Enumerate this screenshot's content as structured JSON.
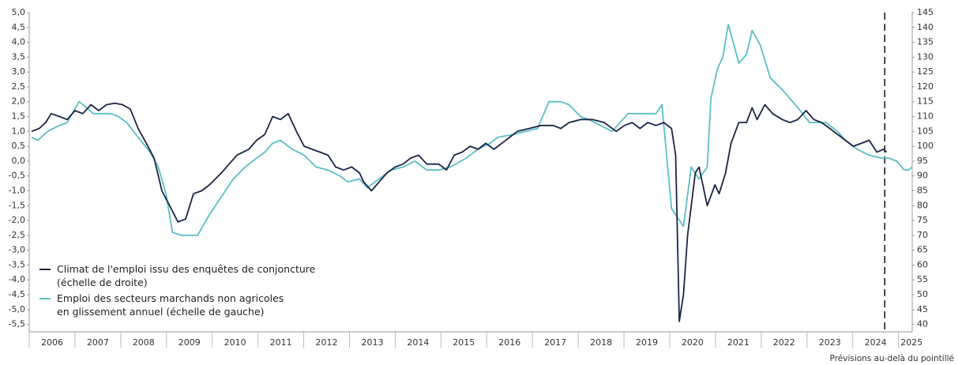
{
  "chart_data": {
    "type": "line",
    "annotation": "Prévisions au-delà du pointillé",
    "forecast_x": 2024.7,
    "xlim": [
      2006,
      2025.3
    ],
    "xticks": [
      2006,
      2007,
      2008,
      2009,
      2010,
      2011,
      2012,
      2013,
      2014,
      2015,
      2016,
      2017,
      2018,
      2019,
      2020,
      2021,
      2022,
      2023,
      2024,
      2025
    ],
    "ylim": [
      -5.75,
      5.0
    ],
    "yticks": [
      {
        "value": 5.0,
        "label": "5,0"
      },
      {
        "value": 4.5,
        "label": "4,5"
      },
      {
        "value": 4.0,
        "label": "4,0"
      },
      {
        "value": 3.5,
        "label": "3,5"
      },
      {
        "value": 3.0,
        "label": "3,0"
      },
      {
        "value": 2.5,
        "label": "2,5"
      },
      {
        "value": 2.0,
        "label": "2,0"
      },
      {
        "value": 1.5,
        "label": "1,5"
      },
      {
        "value": 1.0,
        "label": "1,0"
      },
      {
        "value": 0.5,
        "label": "0,5"
      },
      {
        "value": 0.0,
        "label": "0,0"
      },
      {
        "value": -0.5,
        "label": "-0,5"
      },
      {
        "value": -1.0,
        "label": "-1,0"
      },
      {
        "value": -1.5,
        "label": "-1,5"
      },
      {
        "value": -2.0,
        "label": "-2,0"
      },
      {
        "value": -2.5,
        "label": "-2,5"
      },
      {
        "value": -3.0,
        "label": "-3,0"
      },
      {
        "value": -3.5,
        "label": "-3,5"
      },
      {
        "value": -4.0,
        "label": "-4,0"
      },
      {
        "value": -4.5,
        "label": "-4,5"
      },
      {
        "value": -5.0,
        "label": "-5,0"
      },
      {
        "value": -5.5,
        "label": "-5,5"
      }
    ],
    "y2lim": [
      37.5,
      145
    ],
    "y2ticks": [
      145,
      140,
      135,
      130,
      125,
      120,
      115,
      110,
      105,
      100,
      95,
      90,
      85,
      80,
      75,
      70,
      65,
      60,
      55,
      50,
      45,
      40
    ],
    "grid": false,
    "legend": "lower left",
    "series": [
      {
        "name": "Climat de l'emploi issu des enquêtes de conjoncture\n(échelle de droite)",
        "color": "#1c2547",
        "axis": "y2",
        "x": [
          2006.05,
          2006.22,
          2006.36,
          2006.48,
          2006.66,
          2006.83,
          2007.0,
          2007.17,
          2007.35,
          2007.52,
          2007.69,
          2007.87,
          2008.04,
          2008.21,
          2008.38,
          2008.56,
          2008.73,
          2008.9,
          2009.07,
          2009.25,
          2009.42,
          2009.59,
          2009.77,
          2009.94,
          2010.2,
          2010.37,
          2010.54,
          2010.8,
          2010.97,
          2011.15,
          2011.32,
          2011.49,
          2011.66,
          2011.84,
          2012.01,
          2012.18,
          2012.36,
          2012.53,
          2012.7,
          2012.87,
          2013.05,
          2013.22,
          2013.31,
          2013.48,
          2013.65,
          2013.82,
          2014.0,
          2014.17,
          2014.34,
          2014.51,
          2014.69,
          2014.95,
          2015.12,
          2015.29,
          2015.46,
          2015.64,
          2015.81,
          2015.98,
          2016.16,
          2016.33,
          2016.5,
          2016.67,
          2016.93,
          2017.19,
          2017.45,
          2017.62,
          2017.8,
          2018.06,
          2018.31,
          2018.57,
          2018.83,
          2019.01,
          2019.18,
          2019.35,
          2019.52,
          2019.7,
          2019.87,
          2020.04,
          2020.13,
          2020.21,
          2020.3,
          2020.39,
          2020.56,
          2020.64,
          2020.82,
          2020.99,
          2021.08,
          2021.22,
          2021.34,
          2021.51,
          2021.68,
          2021.8,
          2021.91,
          2022.08,
          2022.25,
          2022.46,
          2022.63,
          2022.8,
          2022.98,
          2023.15,
          2023.32,
          2023.5,
          2023.67,
          2023.84,
          2024.01,
          2024.19,
          2024.36,
          2024.53,
          2024.67,
          2024.74
        ],
        "values": [
          105,
          106,
          108,
          111,
          110,
          109,
          112,
          111,
          114,
          112,
          114,
          114.5,
          114,
          112.5,
          106,
          101,
          96,
          85,
          80,
          74.5,
          75.5,
          84,
          85,
          87,
          91,
          94,
          97,
          99,
          102,
          104,
          110,
          109,
          111,
          105,
          100,
          99,
          98,
          97,
          93,
          92,
          93,
          91,
          88,
          85,
          88,
          91,
          93,
          94,
          96,
          97,
          94,
          94,
          92,
          97,
          98,
          100,
          99,
          101,
          99,
          101,
          103,
          105,
          106,
          107,
          107,
          106,
          108,
          109,
          109,
          108,
          105,
          107,
          108,
          106,
          108,
          107,
          108,
          106,
          97,
          41,
          50,
          70,
          91,
          93,
          80,
          87,
          84,
          91,
          101,
          108,
          108,
          113,
          109,
          114,
          111,
          109,
          108,
          109,
          112,
          109,
          108,
          106,
          104,
          102,
          100,
          101,
          102,
          98,
          99,
          98
        ]
      },
      {
        "name": "Emploi des secteurs marchands non agricoles\nen glissement annuel (échelle de gauche)",
        "color": "#5bbfc4",
        "x": [
          2006.05,
          2006.19,
          2006.4,
          2006.66,
          2006.83,
          2007.09,
          2007.26,
          2007.4,
          2007.78,
          2007.95,
          2008.13,
          2008.38,
          2008.64,
          2008.82,
          2008.99,
          2009.13,
          2009.33,
          2009.68,
          2009.94,
          2010.2,
          2010.46,
          2010.72,
          2010.97,
          2011.15,
          2011.32,
          2011.49,
          2011.75,
          2012.01,
          2012.27,
          2012.53,
          2012.79,
          2012.96,
          2013.22,
          2013.39,
          2013.65,
          2013.91,
          2014.17,
          2014.43,
          2014.69,
          2014.95,
          2015.21,
          2015.55,
          2015.81,
          2016.07,
          2016.24,
          2016.59,
          2016.85,
          2017.11,
          2017.36,
          2017.62,
          2017.8,
          2018.05,
          2018.23,
          2018.49,
          2018.74,
          2019.09,
          2019.35,
          2019.7,
          2019.83,
          2020.04,
          2020.3,
          2020.47,
          2020.64,
          2020.82,
          2020.9,
          2021.04,
          2021.16,
          2021.28,
          2021.51,
          2021.68,
          2021.8,
          2021.98,
          2022.2,
          2022.46,
          2022.8,
          2023.06,
          2023.41,
          2023.67,
          2023.84,
          2024.1,
          2024.36,
          2024.62,
          2024.79,
          2024.96,
          2025.13,
          2025.22,
          2025.3
        ],
        "values": [
          0.8,
          0.7,
          1.0,
          1.2,
          1.3,
          2.0,
          1.8,
          1.6,
          1.6,
          1.5,
          1.3,
          0.8,
          0.3,
          -0.2,
          -1.1,
          -2.4,
          -2.5,
          -2.5,
          -1.8,
          -1.2,
          -0.6,
          -0.2,
          0.1,
          0.3,
          0.6,
          0.7,
          0.4,
          0.2,
          -0.2,
          -0.3,
          -0.5,
          -0.7,
          -0.6,
          -0.9,
          -0.6,
          -0.3,
          -0.2,
          0.0,
          -0.3,
          -0.3,
          -0.2,
          0.1,
          0.4,
          0.6,
          0.8,
          0.9,
          1.0,
          1.1,
          2.0,
          2.0,
          1.9,
          1.5,
          1.4,
          1.2,
          1.0,
          1.6,
          1.6,
          1.6,
          1.9,
          -1.6,
          -2.2,
          -0.2,
          -0.6,
          -0.2,
          2.1,
          3.1,
          3.5,
          4.6,
          3.3,
          3.6,
          4.4,
          3.9,
          2.8,
          2.4,
          1.8,
          1.3,
          1.3,
          1.0,
          0.7,
          0.4,
          0.2,
          0.1,
          0.1,
          0.0,
          -0.3,
          -0.3,
          -0.2
        ]
      }
    ]
  }
}
